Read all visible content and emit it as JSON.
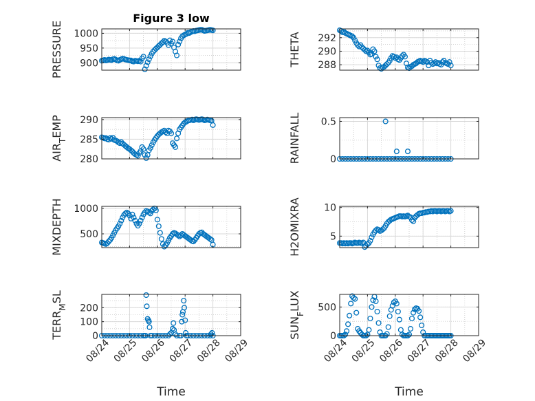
{
  "figure": {
    "marker_color": "#0072BD",
    "grid_color": "#c9c9c9",
    "axis_color": "#262626"
  },
  "chart_data": [
    {
      "type": "scatter",
      "title": "Figure 3 low",
      "ylabel": "PRESSURE",
      "xlabel": "",
      "xlim": [
        0,
        5
      ],
      "ylim": [
        875,
        1015
      ],
      "yticks": [
        900,
        950,
        1000
      ],
      "xticks": [],
      "x": [
        0.0,
        0.05,
        0.1,
        0.15,
        0.2,
        0.25,
        0.3,
        0.35,
        0.4,
        0.45,
        0.5,
        0.55,
        0.6,
        0.65,
        0.7,
        0.75,
        0.8,
        0.85,
        0.9,
        0.95,
        1.0,
        1.05,
        1.1,
        1.15,
        1.2,
        1.25,
        1.3,
        1.35,
        1.4,
        1.45,
        1.5,
        1.55,
        1.6,
        1.65,
        1.7,
        1.75,
        1.8,
        1.85,
        1.9,
        1.95,
        2.0,
        2.05,
        2.1,
        2.15,
        2.2,
        2.25,
        2.3,
        2.35,
        2.4,
        2.45,
        2.5,
        2.55,
        2.6,
        2.65,
        2.7,
        2.75,
        2.8,
        2.85,
        2.9,
        2.95,
        3.0,
        3.05,
        3.1,
        3.15,
        3.2,
        3.25,
        3.3,
        3.35,
        3.4,
        3.45,
        3.5,
        3.55,
        3.6,
        3.65,
        3.7,
        3.75,
        3.8,
        3.85,
        3.9,
        3.95,
        4.0
      ],
      "y": [
        907,
        908,
        910,
        908,
        909,
        911,
        910,
        909,
        912,
        913,
        911,
        908,
        907,
        910,
        912,
        914,
        913,
        911,
        910,
        909,
        908,
        908,
        905,
        904,
        907,
        906,
        905,
        907,
        904,
        915,
        921,
        878,
        890,
        902,
        912,
        922,
        931,
        938,
        943,
        948,
        952,
        957,
        961,
        966,
        970,
        975,
        972,
        968,
        960,
        976,
        965,
        972,
        952,
        938,
        925,
        962,
        972,
        983,
        990,
        993,
        996,
        998,
        1002,
        1001,
        1004,
        1006,
        1008,
        1007,
        1009,
        1010,
        1011,
        1012,
        1012,
        1010,
        1008,
        1009,
        1010,
        1011,
        1012,
        1011,
        1010
      ]
    },
    {
      "type": "scatter",
      "title": "",
      "ylabel": "THETA",
      "xlabel": "",
      "xlim": [
        0,
        5
      ],
      "ylim": [
        287.2,
        293.3
      ],
      "yticks": [
        288,
        290,
        292
      ],
      "xticks": [],
      "x": [
        0.0,
        0.05,
        0.1,
        0.15,
        0.2,
        0.25,
        0.3,
        0.35,
        0.4,
        0.45,
        0.5,
        0.55,
        0.6,
        0.65,
        0.7,
        0.75,
        0.8,
        0.85,
        0.9,
        0.95,
        1.0,
        1.05,
        1.1,
        1.15,
        1.2,
        1.25,
        1.3,
        1.35,
        1.4,
        1.45,
        1.5,
        1.55,
        1.6,
        1.65,
        1.7,
        1.75,
        1.8,
        1.85,
        1.9,
        1.95,
        2.0,
        2.05,
        2.1,
        2.15,
        2.2,
        2.25,
        2.3,
        2.35,
        2.4,
        2.45,
        2.5,
        2.55,
        2.6,
        2.65,
        2.7,
        2.75,
        2.8,
        2.85,
        2.9,
        2.95,
        3.0,
        3.05,
        3.1,
        3.15,
        3.2,
        3.25,
        3.3,
        3.35,
        3.4,
        3.45,
        3.5,
        3.55,
        3.6,
        3.65,
        3.7,
        3.75,
        3.8,
        3.85,
        3.9,
        3.95,
        4.0
      ],
      "y": [
        293.1,
        293.0,
        292.8,
        292.9,
        292.7,
        292.6,
        292.5,
        292.4,
        292.3,
        292.2,
        292.0,
        291.6,
        291.2,
        290.9,
        290.7,
        290.9,
        290.6,
        290.4,
        290.2,
        290.0,
        290.1,
        289.8,
        289.5,
        289.6,
        290.3,
        290.0,
        289.2,
        288.8,
        287.9,
        287.5,
        287.4,
        287.6,
        287.7,
        287.9,
        288.1,
        288.3,
        288.6,
        289.0,
        289.3,
        289.2,
        289.0,
        289.1,
        288.8,
        288.7,
        289.0,
        289.3,
        289.5,
        289.2,
        288.2,
        287.6,
        287.5,
        287.7,
        287.8,
        288.0,
        288.1,
        288.2,
        288.4,
        288.5,
        288.6,
        288.5,
        288.4,
        288.6,
        288.5,
        288.4,
        287.9,
        288.6,
        288.3,
        288.1,
        288.2,
        288.4,
        288.2,
        288.3,
        288.1,
        288.0,
        288.4,
        288.6,
        288.3,
        288.2,
        288.1,
        288.4,
        287.9
      ]
    },
    {
      "type": "scatter",
      "title": "",
      "ylabel": "AIR_TEMP",
      "xlabel": "",
      "xlim": [
        0,
        5
      ],
      "ylim": [
        280,
        290.5
      ],
      "yticks": [
        280,
        285,
        290
      ],
      "xticks": [],
      "x": [
        0.0,
        0.05,
        0.1,
        0.15,
        0.2,
        0.25,
        0.3,
        0.35,
        0.4,
        0.45,
        0.5,
        0.55,
        0.6,
        0.65,
        0.7,
        0.75,
        0.8,
        0.85,
        0.9,
        0.95,
        1.0,
        1.05,
        1.1,
        1.15,
        1.2,
        1.25,
        1.3,
        1.35,
        1.4,
        1.45,
        1.5,
        1.55,
        1.6,
        1.65,
        1.7,
        1.75,
        1.8,
        1.85,
        1.9,
        1.95,
        2.0,
        2.05,
        2.1,
        2.15,
        2.2,
        2.25,
        2.3,
        2.35,
        2.4,
        2.45,
        2.5,
        2.55,
        2.6,
        2.65,
        2.7,
        2.75,
        2.8,
        2.85,
        2.9,
        2.95,
        3.0,
        3.05,
        3.1,
        3.15,
        3.2,
        3.25,
        3.3,
        3.35,
        3.4,
        3.45,
        3.5,
        3.55,
        3.6,
        3.65,
        3.7,
        3.75,
        3.8,
        3.85,
        3.9,
        3.95,
        4.0
      ],
      "y": [
        285.5,
        285.4,
        285.2,
        285.3,
        285.0,
        284.9,
        285.3,
        285.1,
        285.4,
        284.8,
        284.7,
        284.5,
        284.2,
        284.0,
        284.3,
        283.9,
        283.6,
        283.3,
        283.0,
        282.7,
        282.5,
        282.2,
        281.9,
        281.5,
        281.2,
        281.0,
        280.8,
        281.5,
        282.0,
        283.0,
        282.5,
        281.0,
        280.2,
        281.0,
        282.2,
        282.8,
        283.5,
        284.2,
        284.8,
        285.3,
        285.8,
        286.2,
        286.5,
        286.8,
        287.0,
        287.2,
        286.8,
        286.5,
        287.2,
        287.0,
        286.5,
        284.0,
        283.5,
        283.0,
        285.2,
        286.5,
        287.5,
        288.0,
        288.5,
        289.0,
        289.3,
        289.5,
        289.7,
        289.8,
        289.9,
        290.0,
        289.8,
        290.0,
        290.1,
        290.0,
        289.9,
        290.0,
        290.1,
        290.0,
        289.8,
        289.9,
        290.0,
        289.9,
        289.8,
        289.7,
        288.6
      ]
    },
    {
      "type": "scatter",
      "title": "",
      "ylabel": "RAINFALL",
      "xlabel": "",
      "xlim": [
        0,
        5
      ],
      "ylim": [
        0,
        0.55
      ],
      "yticks": [
        0,
        0.5
      ],
      "xticks": [],
      "x": [
        0.0,
        0.1,
        0.2,
        0.3,
        0.4,
        0.5,
        0.6,
        0.7,
        0.8,
        0.9,
        1.0,
        1.1,
        1.2,
        1.3,
        1.4,
        1.5,
        1.6,
        1.7,
        1.8,
        1.9,
        2.0,
        2.1,
        2.2,
        2.3,
        2.4,
        2.5,
        2.6,
        2.7,
        2.8,
        2.9,
        3.0,
        3.1,
        3.2,
        3.3,
        3.4,
        3.5,
        3.6,
        3.7,
        3.8,
        3.9,
        4.0,
        1.65,
        2.05,
        2.45
      ],
      "y": [
        0,
        0,
        0,
        0,
        0,
        0,
        0,
        0,
        0,
        0,
        0,
        0,
        0,
        0,
        0,
        0,
        0,
        0,
        0,
        0,
        0,
        0,
        0,
        0,
        0,
        0,
        0,
        0,
        0,
        0,
        0,
        0,
        0,
        0,
        0,
        0,
        0,
        0,
        0,
        0,
        0,
        0.5,
        0.1,
        0.1
      ]
    },
    {
      "type": "scatter",
      "title": "",
      "ylabel": "MIXDEPTH",
      "xlabel": "",
      "xlim": [
        0,
        5
      ],
      "ylim": [
        230,
        1040
      ],
      "yticks": [
        500,
        1000
      ],
      "xticks": [],
      "x": [
        0.0,
        0.05,
        0.1,
        0.15,
        0.2,
        0.25,
        0.3,
        0.35,
        0.4,
        0.45,
        0.5,
        0.55,
        0.6,
        0.65,
        0.7,
        0.75,
        0.8,
        0.85,
        0.9,
        0.95,
        1.0,
        1.05,
        1.1,
        1.15,
        1.2,
        1.25,
        1.3,
        1.35,
        1.4,
        1.45,
        1.5,
        1.55,
        1.6,
        1.65,
        1.7,
        1.75,
        1.8,
        1.85,
        1.9,
        1.95,
        2.0,
        2.05,
        2.1,
        2.15,
        2.2,
        2.25,
        2.3,
        2.35,
        2.4,
        2.45,
        2.5,
        2.55,
        2.6,
        2.65,
        2.7,
        2.75,
        2.8,
        2.85,
        2.9,
        2.95,
        3.0,
        3.05,
        3.1,
        3.15,
        3.2,
        3.25,
        3.3,
        3.35,
        3.4,
        3.45,
        3.5,
        3.55,
        3.6,
        3.65,
        3.7,
        3.75,
        3.8,
        3.85,
        3.9,
        3.95,
        4.0
      ],
      "y": [
        330,
        320,
        310,
        300,
        320,
        350,
        380,
        420,
        470,
        520,
        570,
        610,
        650,
        700,
        760,
        820,
        870,
        900,
        920,
        900,
        860,
        800,
        880,
        820,
        760,
        700,
        660,
        700,
        760,
        820,
        880,
        920,
        950,
        940,
        920,
        900,
        950,
        980,
        1000,
        960,
        780,
        650,
        520,
        400,
        300,
        250,
        280,
        320,
        370,
        420,
        460,
        500,
        520,
        510,
        490,
        470,
        450,
        470,
        500,
        480,
        460,
        440,
        420,
        400,
        380,
        360,
        350,
        380,
        420,
        460,
        500,
        520,
        530,
        500,
        480,
        460,
        440,
        420,
        400,
        380,
        290
      ]
    },
    {
      "type": "scatter",
      "title": "",
      "ylabel": "H2OMIXRA",
      "xlabel": "",
      "xlim": [
        0,
        5
      ],
      "ylim": [
        3,
        10.2
      ],
      "yticks": [
        5,
        10
      ],
      "xticks": [],
      "x": [
        0.0,
        0.05,
        0.1,
        0.15,
        0.2,
        0.25,
        0.3,
        0.35,
        0.4,
        0.45,
        0.5,
        0.55,
        0.6,
        0.65,
        0.7,
        0.75,
        0.8,
        0.85,
        0.9,
        0.95,
        1.0,
        1.05,
        1.1,
        1.15,
        1.2,
        1.25,
        1.3,
        1.35,
        1.4,
        1.45,
        1.5,
        1.55,
        1.6,
        1.65,
        1.7,
        1.75,
        1.8,
        1.85,
        1.9,
        1.95,
        2.0,
        2.05,
        2.1,
        2.15,
        2.2,
        2.25,
        2.3,
        2.35,
        2.4,
        2.45,
        2.5,
        2.55,
        2.6,
        2.65,
        2.7,
        2.75,
        2.8,
        2.85,
        2.9,
        2.95,
        3.0,
        3.05,
        3.1,
        3.15,
        3.2,
        3.25,
        3.3,
        3.35,
        3.4,
        3.45,
        3.5,
        3.55,
        3.6,
        3.65,
        3.7,
        3.75,
        3.8,
        3.85,
        3.9,
        3.95,
        4.0
      ],
      "y": [
        3.8,
        3.8,
        3.7,
        3.8,
        3.7,
        3.8,
        3.7,
        3.8,
        3.8,
        3.7,
        3.8,
        3.9,
        3.8,
        3.8,
        3.9,
        3.8,
        3.8,
        3.9,
        3.1,
        3.3,
        3.6,
        3.8,
        4.2,
        4.8,
        5.3,
        5.7,
        6.0,
        6.2,
        6.1,
        5.9,
        6.0,
        6.2,
        6.4,
        6.8,
        7.2,
        7.5,
        7.7,
        7.9,
        8.0,
        8.1,
        8.2,
        8.3,
        8.4,
        8.5,
        8.5,
        8.4,
        8.5,
        8.4,
        8.5,
        8.6,
        8.4,
        8.3,
        7.8,
        7.6,
        8.2,
        8.5,
        8.7,
        8.9,
        9.0,
        9.0,
        9.1,
        9.1,
        9.2,
        9.2,
        9.3,
        9.3,
        9.4,
        9.3,
        9.4,
        9.4,
        9.3,
        9.4,
        9.4,
        9.3,
        9.4,
        9.4,
        9.3,
        9.4,
        9.4,
        9.3,
        9.4
      ]
    },
    {
      "type": "scatter",
      "title": "",
      "ylabel": "TERR_MSL",
      "xlabel": "Time",
      "xlim": [
        0,
        5
      ],
      "ylim": [
        0,
        295
      ],
      "yticks": [
        0,
        100,
        200
      ],
      "xticks": [
        0,
        1,
        2,
        3,
        4,
        5
      ],
      "xticklabels": [
        "08/24",
        "08/25",
        "08/26",
        "08/27",
        "08/28",
        "08/29"
      ],
      "x": [
        0.0,
        0.1,
        0.2,
        0.3,
        0.4,
        0.5,
        0.6,
        0.7,
        0.8,
        0.9,
        1.0,
        1.1,
        1.2,
        1.3,
        1.4,
        1.5,
        1.55,
        1.58,
        1.6,
        1.62,
        1.65,
        1.68,
        1.7,
        1.72,
        1.75,
        1.8,
        1.9,
        2.0,
        2.1,
        2.2,
        2.3,
        2.4,
        2.45,
        2.5,
        2.55,
        2.58,
        2.6,
        2.65,
        2.7,
        2.8,
        2.85,
        2.88,
        2.9,
        2.92,
        2.95,
        2.97,
        3.0,
        3.02,
        3.05,
        3.1,
        3.2,
        3.3,
        3.4,
        3.5,
        3.6,
        3.7,
        3.8,
        3.9,
        4.0,
        3.93,
        3.97
      ],
      "y": [
        0,
        0,
        0,
        0,
        0,
        0,
        0,
        0,
        0,
        0,
        0,
        0,
        0,
        0,
        0,
        0,
        0,
        0,
        290,
        210,
        120,
        110,
        100,
        60,
        0,
        0,
        0,
        0,
        0,
        0,
        0,
        0,
        10,
        20,
        50,
        90,
        40,
        10,
        0,
        0,
        0,
        100,
        150,
        170,
        250,
        200,
        110,
        20,
        0,
        0,
        0,
        0,
        0,
        0,
        0,
        0,
        0,
        0,
        0,
        10,
        20
      ]
    },
    {
      "type": "scatter",
      "title": "",
      "ylabel": "SUN_FLUX",
      "xlabel": "Time",
      "xlim": [
        0,
        5
      ],
      "ylim": [
        0,
        720
      ],
      "yticks": [
        0,
        500
      ],
      "xticks": [
        0,
        1,
        2,
        3,
        4,
        5
      ],
      "xticklabels": [
        "08/24",
        "08/25",
        "08/26",
        "08/27",
        "08/28",
        "08/29"
      ],
      "x": [
        0.0,
        0.05,
        0.1,
        0.15,
        0.2,
        0.25,
        0.3,
        0.35,
        0.4,
        0.45,
        0.5,
        0.55,
        0.6,
        0.65,
        0.7,
        0.75,
        0.8,
        0.85,
        0.9,
        0.95,
        1.0,
        1.05,
        1.1,
        1.15,
        1.2,
        1.25,
        1.3,
        1.35,
        1.4,
        1.45,
        1.5,
        1.55,
        1.6,
        1.65,
        1.7,
        1.75,
        1.8,
        1.85,
        1.9,
        1.95,
        2.0,
        2.05,
        2.1,
        2.15,
        2.2,
        2.25,
        2.3,
        2.35,
        2.4,
        2.45,
        2.5,
        2.55,
        2.6,
        2.65,
        2.7,
        2.75,
        2.8,
        2.85,
        2.9,
        2.95,
        3.0,
        3.05,
        3.1,
        3.15,
        3.2,
        3.25,
        3.3,
        3.35,
        3.4,
        3.45,
        3.5,
        3.55,
        3.6,
        3.65,
        3.7,
        3.75,
        3.8,
        3.85,
        3.9,
        3.95,
        4.0
      ],
      "y": [
        0,
        0,
        0,
        0,
        20,
        80,
        200,
        350,
        560,
        690,
        660,
        640,
        400,
        120,
        80,
        50,
        20,
        0,
        0,
        0,
        20,
        100,
        300,
        500,
        620,
        680,
        600,
        420,
        220,
        60,
        0,
        0,
        0,
        0,
        30,
        150,
        340,
        450,
        520,
        580,
        600,
        560,
        420,
        280,
        100,
        20,
        0,
        0,
        0,
        0,
        20,
        120,
        300,
        400,
        460,
        480,
        470,
        430,
        320,
        180,
        60,
        0,
        0,
        0,
        0,
        0,
        0,
        0,
        0,
        0,
        0,
        0,
        0,
        0,
        0,
        0,
        0,
        0,
        0,
        0,
        0
      ]
    }
  ]
}
